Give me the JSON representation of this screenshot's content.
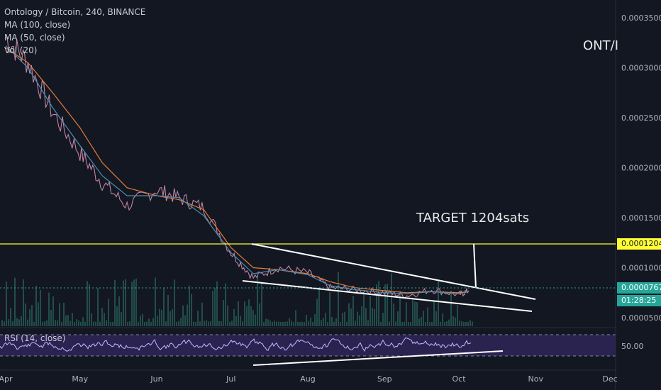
{
  "header": {
    "symbol_line": "Ontology / Bitcoin, 240, BINANCE",
    "ma100": "MA (100, close)",
    "ma50": "MA (50, close)",
    "vol": "Vol (20)",
    "corner_title": "ONT/I"
  },
  "annotation": {
    "target_text": "TARGET 1204sats"
  },
  "rsi": {
    "label": "RSI (14, close)",
    "level_label": "50.00"
  },
  "colors": {
    "background": "#131722",
    "price": "#c084a4",
    "ma100": "#e07c3c",
    "ma50": "#4a8fb0",
    "target_line": "#ffff33",
    "trend_lines": "#ffffff",
    "current_price_bg": "#26a69a",
    "countdown_bg": "#26a69a",
    "rsi_line": "#c7b9ff",
    "rsi_band": "#3b2f6b",
    "volume": "#2f7a6e"
  },
  "price_axis": {
    "ticks": [
      "0.0003500",
      "0.0003000",
      "0.0002500",
      "0.0002000",
      "0.0001500",
      "0.0001000",
      "0.0000500"
    ],
    "target_label": "0.0001204",
    "current_label": "0.0000767",
    "countdown": "01:28:25"
  },
  "time_axis": {
    "ticks": [
      "Apr",
      "May",
      "Jun",
      "Jul",
      "Aug",
      "Sep",
      "Oct",
      "Nov",
      "Dec"
    ]
  },
  "chart_data": {
    "type": "line",
    "title": "Ontology / Bitcoin, 240, BINANCE",
    "xlabel": "",
    "ylabel": "",
    "x_dates": [
      "2019-04-01",
      "2019-04-10",
      "2019-04-20",
      "2019-05-01",
      "2019-05-10",
      "2019-05-20",
      "2019-06-01",
      "2019-06-10",
      "2019-06-20",
      "2019-07-01",
      "2019-07-10",
      "2019-07-20",
      "2019-08-01",
      "2019-08-10",
      "2019-08-20",
      "2019-09-01",
      "2019-09-10",
      "2019-09-20",
      "2019-10-01",
      "2019-10-05"
    ],
    "ylim": [
      4e-05,
      0.00037
    ],
    "series": [
      {
        "name": "",
        "values": [
          0.00033,
          0.000305,
          0.000255,
          0.000215,
          0.000185,
          0.000162,
          0.000178,
          0.00017,
          0.00016,
          0.000115,
          9e-05,
          0.0001,
          9.5e-05,
          8e-05,
          7.8e-05,
          7.5e-05,
          7.2e-05,
          7.8e-05,
          7.3e-05,
          7.7e-05
        ]
      },
      {
        "name": "MA (100, close)",
        "values": [
          0.00032,
          0.000305,
          0.000275,
          0.00024,
          0.000205,
          0.00018,
          0.000172,
          0.000168,
          0.000158,
          0.00012,
          0.0001,
          9.8e-05,
          9.4e-05,
          8.6e-05,
          8e-05,
          7.7e-05,
          7.5e-05,
          7.6e-05,
          7.5e-05,
          7.6e-05
        ]
      },
      {
        "name": "MA (50, close)",
        "values": [
          0.000322,
          0.0003,
          0.00026,
          0.000222,
          0.000192,
          0.000172,
          0.000172,
          0.00017,
          0.000152,
          0.000115,
          9.4e-05,
          9.8e-05,
          9.3e-05,
          8.2e-05,
          7.8e-05,
          7.5e-05,
          7.4e-05,
          7.6e-05,
          7.4e-05,
          7.6e-05
        ]
      }
    ],
    "annotations": [
      {
        "type": "horizontal_line",
        "value": 0.0001204,
        "label": "0.0001204"
      },
      {
        "type": "text",
        "text": "TARGET 1204sats"
      }
    ],
    "grid": false,
    "legend": "top-left"
  }
}
